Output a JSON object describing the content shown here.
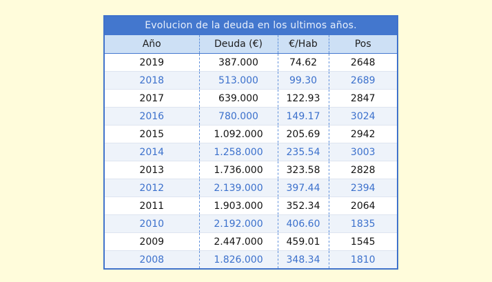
{
  "page": {
    "background_color": "#FFFCDB"
  },
  "colors": {
    "accent_blue": "#4377CE",
    "panel_border": "#3F72CB",
    "header_row_bg": "#CDE0F5",
    "alt_row_bg": "#EEF3FA",
    "alt_row_text": "#3B70CC",
    "row_text": "#121212",
    "title_text": "#E7EFFB",
    "column_divider_dashed": "#5E8FDB",
    "row_divider": "#DDE4F0"
  },
  "chart_data": {
    "type": "table",
    "title": "Evolucion de la deuda en los ultimos años.",
    "columns": [
      "Año",
      "Deuda (€)",
      "€/Hab",
      "Pos"
    ],
    "rows": [
      [
        "2019",
        "387.000",
        "74.62",
        "2648"
      ],
      [
        "2018",
        "513.000",
        "99.30",
        "2689"
      ],
      [
        "2017",
        "639.000",
        "122.93",
        "2847"
      ],
      [
        "2016",
        "780.000",
        "149.17",
        "3024"
      ],
      [
        "2015",
        "1.092.000",
        "205.69",
        "2942"
      ],
      [
        "2014",
        "1.258.000",
        "235.54",
        "3003"
      ],
      [
        "2013",
        "1.736.000",
        "323.58",
        "2828"
      ],
      [
        "2012",
        "2.139.000",
        "397.44",
        "2394"
      ],
      [
        "2011",
        "1.903.000",
        "352.34",
        "2064"
      ],
      [
        "2010",
        "2.192.000",
        "406.60",
        "1835"
      ],
      [
        "2009",
        "2.447.000",
        "459.01",
        "1545"
      ],
      [
        "2008",
        "1.826.000",
        "348.34",
        "1810"
      ]
    ]
  }
}
